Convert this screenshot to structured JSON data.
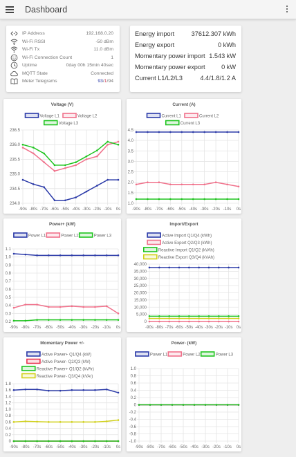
{
  "header": {
    "title": "Dashboard",
    "menu_icon": "hamburger-menu-icon",
    "more_icon": "more-vert-icon"
  },
  "status": {
    "rows": [
      {
        "icon": "ip-arrows-icon",
        "label": "IP Address",
        "value": "192.168.0.20"
      },
      {
        "icon": "wifi-icon",
        "label": "Wi-Fi RSSI",
        "value": "-50 dBm"
      },
      {
        "icon": "wifi-icon",
        "label": "Wi-Fi Tx",
        "value": "11.0 dBm"
      },
      {
        "icon": "smiley-icon",
        "label": "Wi-Fi Connection Count",
        "value": "1"
      },
      {
        "icon": "clock-icon",
        "label": "Uptime",
        "value": "0day 00h 15min 40sec"
      },
      {
        "icon": "cloud-icon",
        "label": "MQTT State",
        "value": "Connected"
      }
    ],
    "telegrams": {
      "icon": "book-icon",
      "label": "Meter Telegrams",
      "current": "93",
      "sep1": "/",
      "errors": "1",
      "sep2": "/",
      "total": "94"
    }
  },
  "energy": {
    "rows": [
      {
        "label": "Energy import",
        "value": "37612.307 kWh"
      },
      {
        "label": "Energy export",
        "value": "0 kWh"
      },
      {
        "label": "Momentary power import",
        "value": "1.543 kW"
      },
      {
        "label": "Momentary power export",
        "value": "0 kW"
      },
      {
        "label": "Current L1/L2/L3",
        "value": "4.4/1.8/1.2 A"
      }
    ]
  },
  "colors": {
    "blue": "#2b3aa8",
    "pink": "#f0708a",
    "green": "#1ec41e",
    "yellow": "#d0d01a",
    "red": "#e8324f"
  },
  "chart_data": [
    {
      "type": "line",
      "title": "Voltage (V)",
      "x": [
        "-90s",
        "-80s",
        "-70s",
        "-60s",
        "-50s",
        "-40s",
        "-30s",
        "-20s",
        "-10s",
        "0s"
      ],
      "ylim": [
        234,
        236.5
      ],
      "yticks": [
        "234.0",
        "234.5",
        "235.0",
        "235.5",
        "236.0",
        "236.5"
      ],
      "series": [
        {
          "name": "Voltage L1",
          "color": "#2b3aa8",
          "values": [
            234.8,
            234.65,
            234.55,
            234.1,
            234.1,
            234.2,
            234.4,
            234.6,
            234.8,
            234.8
          ]
        },
        {
          "name": "Voltage L2",
          "color": "#f0708a",
          "values": [
            235.9,
            235.7,
            235.4,
            235.1,
            235.2,
            235.3,
            235.5,
            235.6,
            236.0,
            236.1
          ]
        },
        {
          "name": "Voltage L3",
          "color": "#1ec41e",
          "values": [
            236.0,
            235.9,
            235.7,
            235.3,
            235.3,
            235.4,
            235.6,
            235.8,
            236.1,
            236.0
          ]
        }
      ]
    },
    {
      "type": "line",
      "title": "Current (A)",
      "x": [
        "-90s",
        "-80s",
        "-70s",
        "-60s",
        "-50s",
        "-40s",
        "-30s",
        "-20s",
        "-10s",
        "0s"
      ],
      "ylim": [
        1,
        4.5
      ],
      "yticks": [
        "1.0",
        "1.5",
        "2.0",
        "2.5",
        "3.0",
        "3.5",
        "4.0",
        "4.5"
      ],
      "series": [
        {
          "name": "Current L1",
          "color": "#2b3aa8",
          "values": [
            4.4,
            4.4,
            4.4,
            4.4,
            4.4,
            4.4,
            4.4,
            4.4,
            4.4,
            4.4
          ]
        },
        {
          "name": "Current L2",
          "color": "#f0708a",
          "values": [
            1.9,
            2.0,
            2.0,
            1.9,
            1.9,
            1.9,
            1.9,
            2.0,
            1.9,
            1.8
          ]
        },
        {
          "name": "Current L3",
          "color": "#1ec41e",
          "values": [
            1.2,
            1.2,
            1.2,
            1.2,
            1.2,
            1.2,
            1.2,
            1.2,
            1.2,
            1.2
          ]
        }
      ]
    },
    {
      "type": "line",
      "title": "Power+ (kW)",
      "x": [
        "-90s",
        "-80s",
        "-70s",
        "-60s",
        "-50s",
        "-40s",
        "-30s",
        "-20s",
        "-10s",
        "0s"
      ],
      "ylim": [
        0.2,
        1.1
      ],
      "yticks": [
        "0.2",
        "0.3",
        "0.4",
        "0.5",
        "0.6",
        "0.7",
        "0.8",
        "0.9",
        "1.0",
        "1.1"
      ],
      "series": [
        {
          "name": "Power L1",
          "color": "#2b3aa8",
          "values": [
            1.04,
            1.03,
            1.02,
            1.02,
            1.02,
            1.02,
            1.02,
            1.02,
            1.02,
            1.02
          ]
        },
        {
          "name": "Power L2",
          "color": "#f0708a",
          "values": [
            0.37,
            0.41,
            0.41,
            0.38,
            0.38,
            0.39,
            0.38,
            0.38,
            0.39,
            0.3
          ]
        },
        {
          "name": "Power L3",
          "color": "#1ec41e",
          "values": [
            0.21,
            0.21,
            0.22,
            0.22,
            0.22,
            0.22,
            0.22,
            0.22,
            0.22,
            0.22
          ]
        }
      ]
    },
    {
      "type": "line",
      "title": "Import/Export",
      "x": [
        "-90s",
        "-80s",
        "-70s",
        "-60s",
        "-50s",
        "-40s",
        "-30s",
        "-20s",
        "-10s",
        "0s"
      ],
      "ylim": [
        0,
        40000
      ],
      "yticks": [
        "0",
        "5,000",
        "10,000",
        "15,000",
        "20,000",
        "25,000",
        "30,000",
        "35,000",
        "40,000"
      ],
      "series": [
        {
          "name": "Active Import Q1/Q4 (kWh)",
          "color": "#2b3aa8",
          "values": [
            37612,
            37612,
            37612,
            37612,
            37612,
            37612,
            37612,
            37612,
            37612,
            37612
          ]
        },
        {
          "name": "Active Export Q2/Q3 (kWh)",
          "color": "#f0708a",
          "values": [
            0,
            0,
            0,
            0,
            0,
            0,
            0,
            0,
            0,
            0
          ]
        },
        {
          "name": "Reactive Import Q1/Q2 (kVAh)",
          "color": "#1ec41e",
          "values": [
            3700,
            3700,
            3700,
            3700,
            3700,
            3700,
            3700,
            3700,
            3700,
            3700
          ]
        },
        {
          "name": "Reactive Export Q3/Q4 (kVAh)",
          "color": "#d0d01a",
          "values": [
            2100,
            2100,
            2100,
            2100,
            2100,
            2100,
            2100,
            2100,
            2100,
            2100
          ]
        }
      ]
    },
    {
      "type": "line",
      "title": "Momentary Power +/-",
      "x": [
        "-90s",
        "-80s",
        "-70s",
        "-60s",
        "-50s",
        "-40s",
        "-30s",
        "-20s",
        "-10s",
        "0s"
      ],
      "ylim": [
        0,
        1.8
      ],
      "yticks": [
        "0",
        "0.2",
        "0.4",
        "0.6",
        "0.8",
        "1.0",
        "1.2",
        "1.4",
        "1.6",
        "1.8"
      ],
      "series": [
        {
          "name": "Active Power+ Q1/Q4 (kW)",
          "color": "#2b3aa8",
          "values": [
            1.6,
            1.62,
            1.62,
            1.58,
            1.58,
            1.6,
            1.6,
            1.6,
            1.62,
            1.52
          ]
        },
        {
          "name": "Active Power- Q2/Q3 (kW)",
          "color": "#e8324f",
          "values": [
            0,
            0,
            0,
            0,
            0,
            0,
            0,
            0,
            0,
            0
          ]
        },
        {
          "name": "Reactive Power+ Q1/Q2 (kVAr)",
          "color": "#1ec41e",
          "values": [
            0,
            0,
            0,
            0,
            0,
            0,
            0,
            0,
            0,
            0
          ]
        },
        {
          "name": "Reactive Power- Q3/Q4 (kVAr)",
          "color": "#d0d01a",
          "values": [
            0.6,
            0.62,
            0.61,
            0.6,
            0.6,
            0.6,
            0.6,
            0.6,
            0.62,
            0.66
          ]
        }
      ]
    },
    {
      "type": "line",
      "title": "Power- (kW)",
      "x": [
        "-90s",
        "-80s",
        "-70s",
        "-60s",
        "-50s",
        "-40s",
        "-30s",
        "-20s",
        "-10s",
        "0s"
      ],
      "ylim": [
        -1,
        1
      ],
      "yticks": [
        "-1.0",
        "-0.8",
        "-0.6",
        "-0.4",
        "-0.2",
        "0",
        "0.2",
        "0.4",
        "0.6",
        "0.8",
        "1.0"
      ],
      "series": [
        {
          "name": "Power L1",
          "color": "#2b3aa8",
          "values": [
            0,
            0,
            0,
            0,
            0,
            0,
            0,
            0,
            0,
            0
          ]
        },
        {
          "name": "Power L2",
          "color": "#f0708a",
          "values": [
            0,
            0,
            0,
            0,
            0,
            0,
            0,
            0,
            0,
            0
          ]
        },
        {
          "name": "Power L3",
          "color": "#1ec41e",
          "values": [
            0,
            0,
            0,
            0,
            0,
            0,
            0,
            0,
            0,
            0
          ]
        }
      ]
    }
  ]
}
